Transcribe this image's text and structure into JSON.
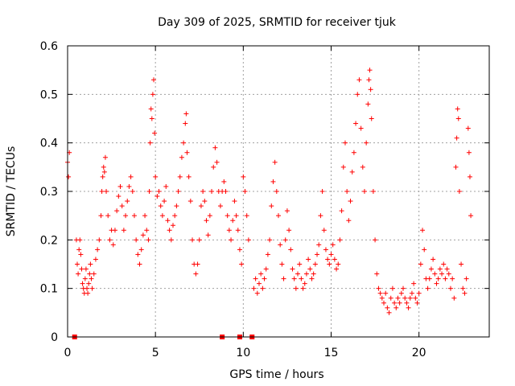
{
  "chart_data": {
    "type": "scatter",
    "title": "Day 309 of 2025, SRMTID for receiver tjuk",
    "xlabel": "GPS time / hours",
    "ylabel": "SRMTID / TECUs",
    "xlim": [
      0,
      24
    ],
    "ylim": [
      0,
      0.6
    ],
    "xticks": [
      0,
      5,
      10,
      15,
      20
    ],
    "xtick_labels": [
      "0",
      "5",
      "10",
      "15",
      "20"
    ],
    "yticks": [
      0,
      0.1,
      0.2,
      0.3,
      0.4,
      0.5,
      0.6
    ],
    "ytick_labels": [
      "0",
      "0.1",
      "0.2",
      "0.3",
      "0.4",
      "0.5",
      "0.6"
    ],
    "grid": true,
    "marker": "plus",
    "color": "#ff0000",
    "baseline_markers_x": [
      0.4,
      8.8,
      9.8,
      10.5
    ],
    "series": [
      {
        "name": "SRMTID",
        "points": [
          [
            0.0,
            0.36
          ],
          [
            0.05,
            0.33
          ],
          [
            0.1,
            0.38
          ],
          [
            0.5,
            0.2
          ],
          [
            0.55,
            0.15
          ],
          [
            0.6,
            0.13
          ],
          [
            0.65,
            0.18
          ],
          [
            0.7,
            0.2
          ],
          [
            0.75,
            0.17
          ],
          [
            0.8,
            0.14
          ],
          [
            0.85,
            0.11
          ],
          [
            0.9,
            0.1
          ],
          [
            0.95,
            0.09
          ],
          [
            1.0,
            0.12
          ],
          [
            1.05,
            0.14
          ],
          [
            1.1,
            0.1
          ],
          [
            1.15,
            0.09
          ],
          [
            1.2,
            0.11
          ],
          [
            1.25,
            0.13
          ],
          [
            1.3,
            0.15
          ],
          [
            1.35,
            0.12
          ],
          [
            1.4,
            0.1
          ],
          [
            1.5,
            0.13
          ],
          [
            1.6,
            0.16
          ],
          [
            1.7,
            0.18
          ],
          [
            1.8,
            0.2
          ],
          [
            1.9,
            0.25
          ],
          [
            1.95,
            0.3
          ],
          [
            2.0,
            0.33
          ],
          [
            2.05,
            0.35
          ],
          [
            2.1,
            0.34
          ],
          [
            2.15,
            0.37
          ],
          [
            2.2,
            0.3
          ],
          [
            2.3,
            0.25
          ],
          [
            2.4,
            0.2
          ],
          [
            2.5,
            0.22
          ],
          [
            2.6,
            0.19
          ],
          [
            2.7,
            0.22
          ],
          [
            2.8,
            0.26
          ],
          [
            2.9,
            0.29
          ],
          [
            3.0,
            0.31
          ],
          [
            3.1,
            0.27
          ],
          [
            3.2,
            0.22
          ],
          [
            3.3,
            0.25
          ],
          [
            3.4,
            0.28
          ],
          [
            3.5,
            0.31
          ],
          [
            3.6,
            0.33
          ],
          [
            3.7,
            0.3
          ],
          [
            3.8,
            0.25
          ],
          [
            3.9,
            0.2
          ],
          [
            4.0,
            0.17
          ],
          [
            4.1,
            0.15
          ],
          [
            4.2,
            0.18
          ],
          [
            4.3,
            0.21
          ],
          [
            4.4,
            0.25
          ],
          [
            4.5,
            0.22
          ],
          [
            4.6,
            0.2
          ],
          [
            4.65,
            0.3
          ],
          [
            4.7,
            0.4
          ],
          [
            4.75,
            0.47
          ],
          [
            4.8,
            0.45
          ],
          [
            4.85,
            0.5
          ],
          [
            4.9,
            0.53
          ],
          [
            4.95,
            0.42
          ],
          [
            5.0,
            0.33
          ],
          [
            5.1,
            0.29
          ],
          [
            5.2,
            0.3
          ],
          [
            5.3,
            0.27
          ],
          [
            5.4,
            0.25
          ],
          [
            5.5,
            0.28
          ],
          [
            5.6,
            0.31
          ],
          [
            5.7,
            0.24
          ],
          [
            5.8,
            0.22
          ],
          [
            5.9,
            0.2
          ],
          [
            6.0,
            0.23
          ],
          [
            6.1,
            0.25
          ],
          [
            6.2,
            0.27
          ],
          [
            6.3,
            0.3
          ],
          [
            6.4,
            0.33
          ],
          [
            6.5,
            0.37
          ],
          [
            6.6,
            0.4
          ],
          [
            6.7,
            0.44
          ],
          [
            6.75,
            0.46
          ],
          [
            6.8,
            0.38
          ],
          [
            6.9,
            0.33
          ],
          [
            7.0,
            0.28
          ],
          [
            7.1,
            0.2
          ],
          [
            7.2,
            0.15
          ],
          [
            7.3,
            0.13
          ],
          [
            7.4,
            0.15
          ],
          [
            7.5,
            0.2
          ],
          [
            7.6,
            0.27
          ],
          [
            7.7,
            0.3
          ],
          [
            7.8,
            0.28
          ],
          [
            7.9,
            0.24
          ],
          [
            8.0,
            0.21
          ],
          [
            8.1,
            0.25
          ],
          [
            8.2,
            0.3
          ],
          [
            8.3,
            0.35
          ],
          [
            8.4,
            0.39
          ],
          [
            8.5,
            0.36
          ],
          [
            8.6,
            0.3
          ],
          [
            8.7,
            0.27
          ],
          [
            8.8,
            0.3
          ],
          [
            8.9,
            0.32
          ],
          [
            9.0,
            0.3
          ],
          [
            9.1,
            0.25
          ],
          [
            9.2,
            0.22
          ],
          [
            9.3,
            0.2
          ],
          [
            9.4,
            0.24
          ],
          [
            9.5,
            0.28
          ],
          [
            9.6,
            0.25
          ],
          [
            9.7,
            0.22
          ],
          [
            9.8,
            0.18
          ],
          [
            9.9,
            0.15
          ],
          [
            10.0,
            0.33
          ],
          [
            10.1,
            0.3
          ],
          [
            10.2,
            0.25
          ],
          [
            10.3,
            0.2
          ],
          [
            10.6,
            0.1
          ],
          [
            10.7,
            0.12
          ],
          [
            10.8,
            0.09
          ],
          [
            10.9,
            0.11
          ],
          [
            11.0,
            0.13
          ],
          [
            11.1,
            0.1
          ],
          [
            11.2,
            0.12
          ],
          [
            11.3,
            0.14
          ],
          [
            11.4,
            0.17
          ],
          [
            11.5,
            0.2
          ],
          [
            11.6,
            0.27
          ],
          [
            11.7,
            0.32
          ],
          [
            11.8,
            0.36
          ],
          [
            11.9,
            0.3
          ],
          [
            12.0,
            0.25
          ],
          [
            12.1,
            0.19
          ],
          [
            12.2,
            0.15
          ],
          [
            12.3,
            0.12
          ],
          [
            12.4,
            0.2
          ],
          [
            12.5,
            0.26
          ],
          [
            12.6,
            0.22
          ],
          [
            12.7,
            0.18
          ],
          [
            12.8,
            0.14
          ],
          [
            12.9,
            0.12
          ],
          [
            13.0,
            0.1
          ],
          [
            13.1,
            0.13
          ],
          [
            13.2,
            0.15
          ],
          [
            13.3,
            0.12
          ],
          [
            13.4,
            0.1
          ],
          [
            13.5,
            0.11
          ],
          [
            13.6,
            0.13
          ],
          [
            13.7,
            0.16
          ],
          [
            13.8,
            0.14
          ],
          [
            13.9,
            0.12
          ],
          [
            14.0,
            0.13
          ],
          [
            14.1,
            0.15
          ],
          [
            14.2,
            0.17
          ],
          [
            14.3,
            0.19
          ],
          [
            14.4,
            0.25
          ],
          [
            14.5,
            0.3
          ],
          [
            14.6,
            0.22
          ],
          [
            14.7,
            0.18
          ],
          [
            14.8,
            0.16
          ],
          [
            14.9,
            0.15
          ],
          [
            15.0,
            0.17
          ],
          [
            15.1,
            0.19
          ],
          [
            15.2,
            0.16
          ],
          [
            15.3,
            0.14
          ],
          [
            15.4,
            0.15
          ],
          [
            15.5,
            0.2
          ],
          [
            15.6,
            0.26
          ],
          [
            15.7,
            0.35
          ],
          [
            15.8,
            0.4
          ],
          [
            15.9,
            0.3
          ],
          [
            16.0,
            0.24
          ],
          [
            16.1,
            0.28
          ],
          [
            16.2,
            0.34
          ],
          [
            16.3,
            0.38
          ],
          [
            16.4,
            0.44
          ],
          [
            16.5,
            0.5
          ],
          [
            16.6,
            0.53
          ],
          [
            16.7,
            0.43
          ],
          [
            16.8,
            0.35
          ],
          [
            16.9,
            0.3
          ],
          [
            17.0,
            0.4
          ],
          [
            17.1,
            0.48
          ],
          [
            17.15,
            0.53
          ],
          [
            17.2,
            0.55
          ],
          [
            17.25,
            0.51
          ],
          [
            17.3,
            0.45
          ],
          [
            17.4,
            0.3
          ],
          [
            17.5,
            0.2
          ],
          [
            17.6,
            0.13
          ],
          [
            17.7,
            0.1
          ],
          [
            17.8,
            0.09
          ],
          [
            17.9,
            0.08
          ],
          [
            18.0,
            0.07
          ],
          [
            18.1,
            0.09
          ],
          [
            18.2,
            0.06
          ],
          [
            18.3,
            0.05
          ],
          [
            18.4,
            0.08
          ],
          [
            18.5,
            0.1
          ],
          [
            18.6,
            0.07
          ],
          [
            18.7,
            0.06
          ],
          [
            18.8,
            0.08
          ],
          [
            18.9,
            0.07
          ],
          [
            19.0,
            0.09
          ],
          [
            19.1,
            0.1
          ],
          [
            19.2,
            0.08
          ],
          [
            19.3,
            0.07
          ],
          [
            19.4,
            0.06
          ],
          [
            19.5,
            0.08
          ],
          [
            19.6,
            0.09
          ],
          [
            19.7,
            0.11
          ],
          [
            19.8,
            0.08
          ],
          [
            19.9,
            0.07
          ],
          [
            20.0,
            0.09
          ],
          [
            20.1,
            0.15
          ],
          [
            20.2,
            0.22
          ],
          [
            20.3,
            0.18
          ],
          [
            20.4,
            0.12
          ],
          [
            20.5,
            0.1
          ],
          [
            20.6,
            0.12
          ],
          [
            20.7,
            0.14
          ],
          [
            20.8,
            0.16
          ],
          [
            20.9,
            0.13
          ],
          [
            21.0,
            0.11
          ],
          [
            21.1,
            0.12
          ],
          [
            21.2,
            0.14
          ],
          [
            21.3,
            0.13
          ],
          [
            21.4,
            0.15
          ],
          [
            21.5,
            0.12
          ],
          [
            21.6,
            0.14
          ],
          [
            21.7,
            0.13
          ],
          [
            21.8,
            0.1
          ],
          [
            21.9,
            0.12
          ],
          [
            22.0,
            0.08
          ],
          [
            22.1,
            0.35
          ],
          [
            22.15,
            0.41
          ],
          [
            22.2,
            0.47
          ],
          [
            22.25,
            0.45
          ],
          [
            22.3,
            0.3
          ],
          [
            22.4,
            0.15
          ],
          [
            22.5,
            0.1
          ],
          [
            22.6,
            0.09
          ],
          [
            22.7,
            0.12
          ],
          [
            22.8,
            0.43
          ],
          [
            22.85,
            0.38
          ],
          [
            22.9,
            0.33
          ],
          [
            22.95,
            0.25
          ]
        ]
      }
    ]
  }
}
